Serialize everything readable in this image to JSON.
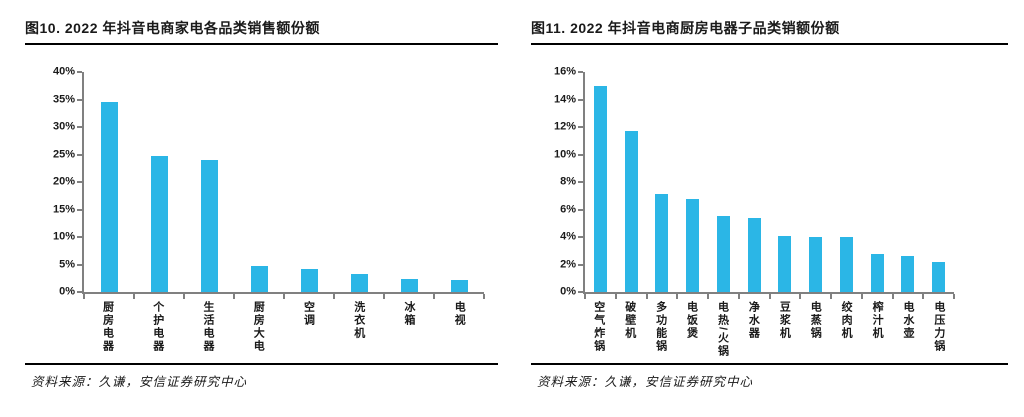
{
  "colors": {
    "bar": "#2BB6E6",
    "axis": "#808080",
    "rule_line": "#000000",
    "text": "#1a1a1a"
  },
  "chart_data": [
    {
      "type": "bar",
      "title": "图10. 2022 年抖音电商家电各品类销售额份额",
      "categories": [
        "厨房电器",
        "个护电器",
        "生活电器",
        "厨房大电",
        "空调",
        "洗衣机",
        "冰箱",
        "电视"
      ],
      "values": [
        34.5,
        24.8,
        24.0,
        4.7,
        4.1,
        3.2,
        2.4,
        2.1
      ],
      "unit": "%",
      "ylim": [
        0,
        40
      ],
      "ytick_step": 5,
      "ytick_labels": [
        "40%",
        "35%",
        "30%",
        "25%",
        "20%",
        "15%",
        "10%",
        "5%",
        "0%"
      ],
      "xlabel": "",
      "ylabel": "",
      "grid": false,
      "legend": false,
      "bar_color": "#2BB6E6",
      "source": "资料来源：久谦，安信证券研究中心"
    },
    {
      "type": "bar",
      "title": "图11. 2022 年抖音电商厨房电器子品类销额份额",
      "categories": [
        "空气炸锅",
        "破壁机",
        "多功能锅",
        "电饭煲",
        "电热/火锅",
        "净水器",
        "豆浆机",
        "电蒸锅",
        "绞肉机",
        "榨汁机",
        "电水壶",
        "电压力锅"
      ],
      "values": [
        15.0,
        11.7,
        7.1,
        6.8,
        5.5,
        5.4,
        4.1,
        4.0,
        4.0,
        2.8,
        2.6,
        2.2
      ],
      "unit": "%",
      "ylim": [
        0,
        16
      ],
      "ytick_step": 2,
      "ytick_labels": [
        "16%",
        "14%",
        "12%",
        "10%",
        "8%",
        "6%",
        "4%",
        "2%",
        "0%"
      ],
      "xlabel": "",
      "ylabel": "",
      "grid": false,
      "legend": false,
      "bar_color": "#2BB6E6",
      "source": "资料来源：久谦，安信证券研究中心"
    }
  ]
}
